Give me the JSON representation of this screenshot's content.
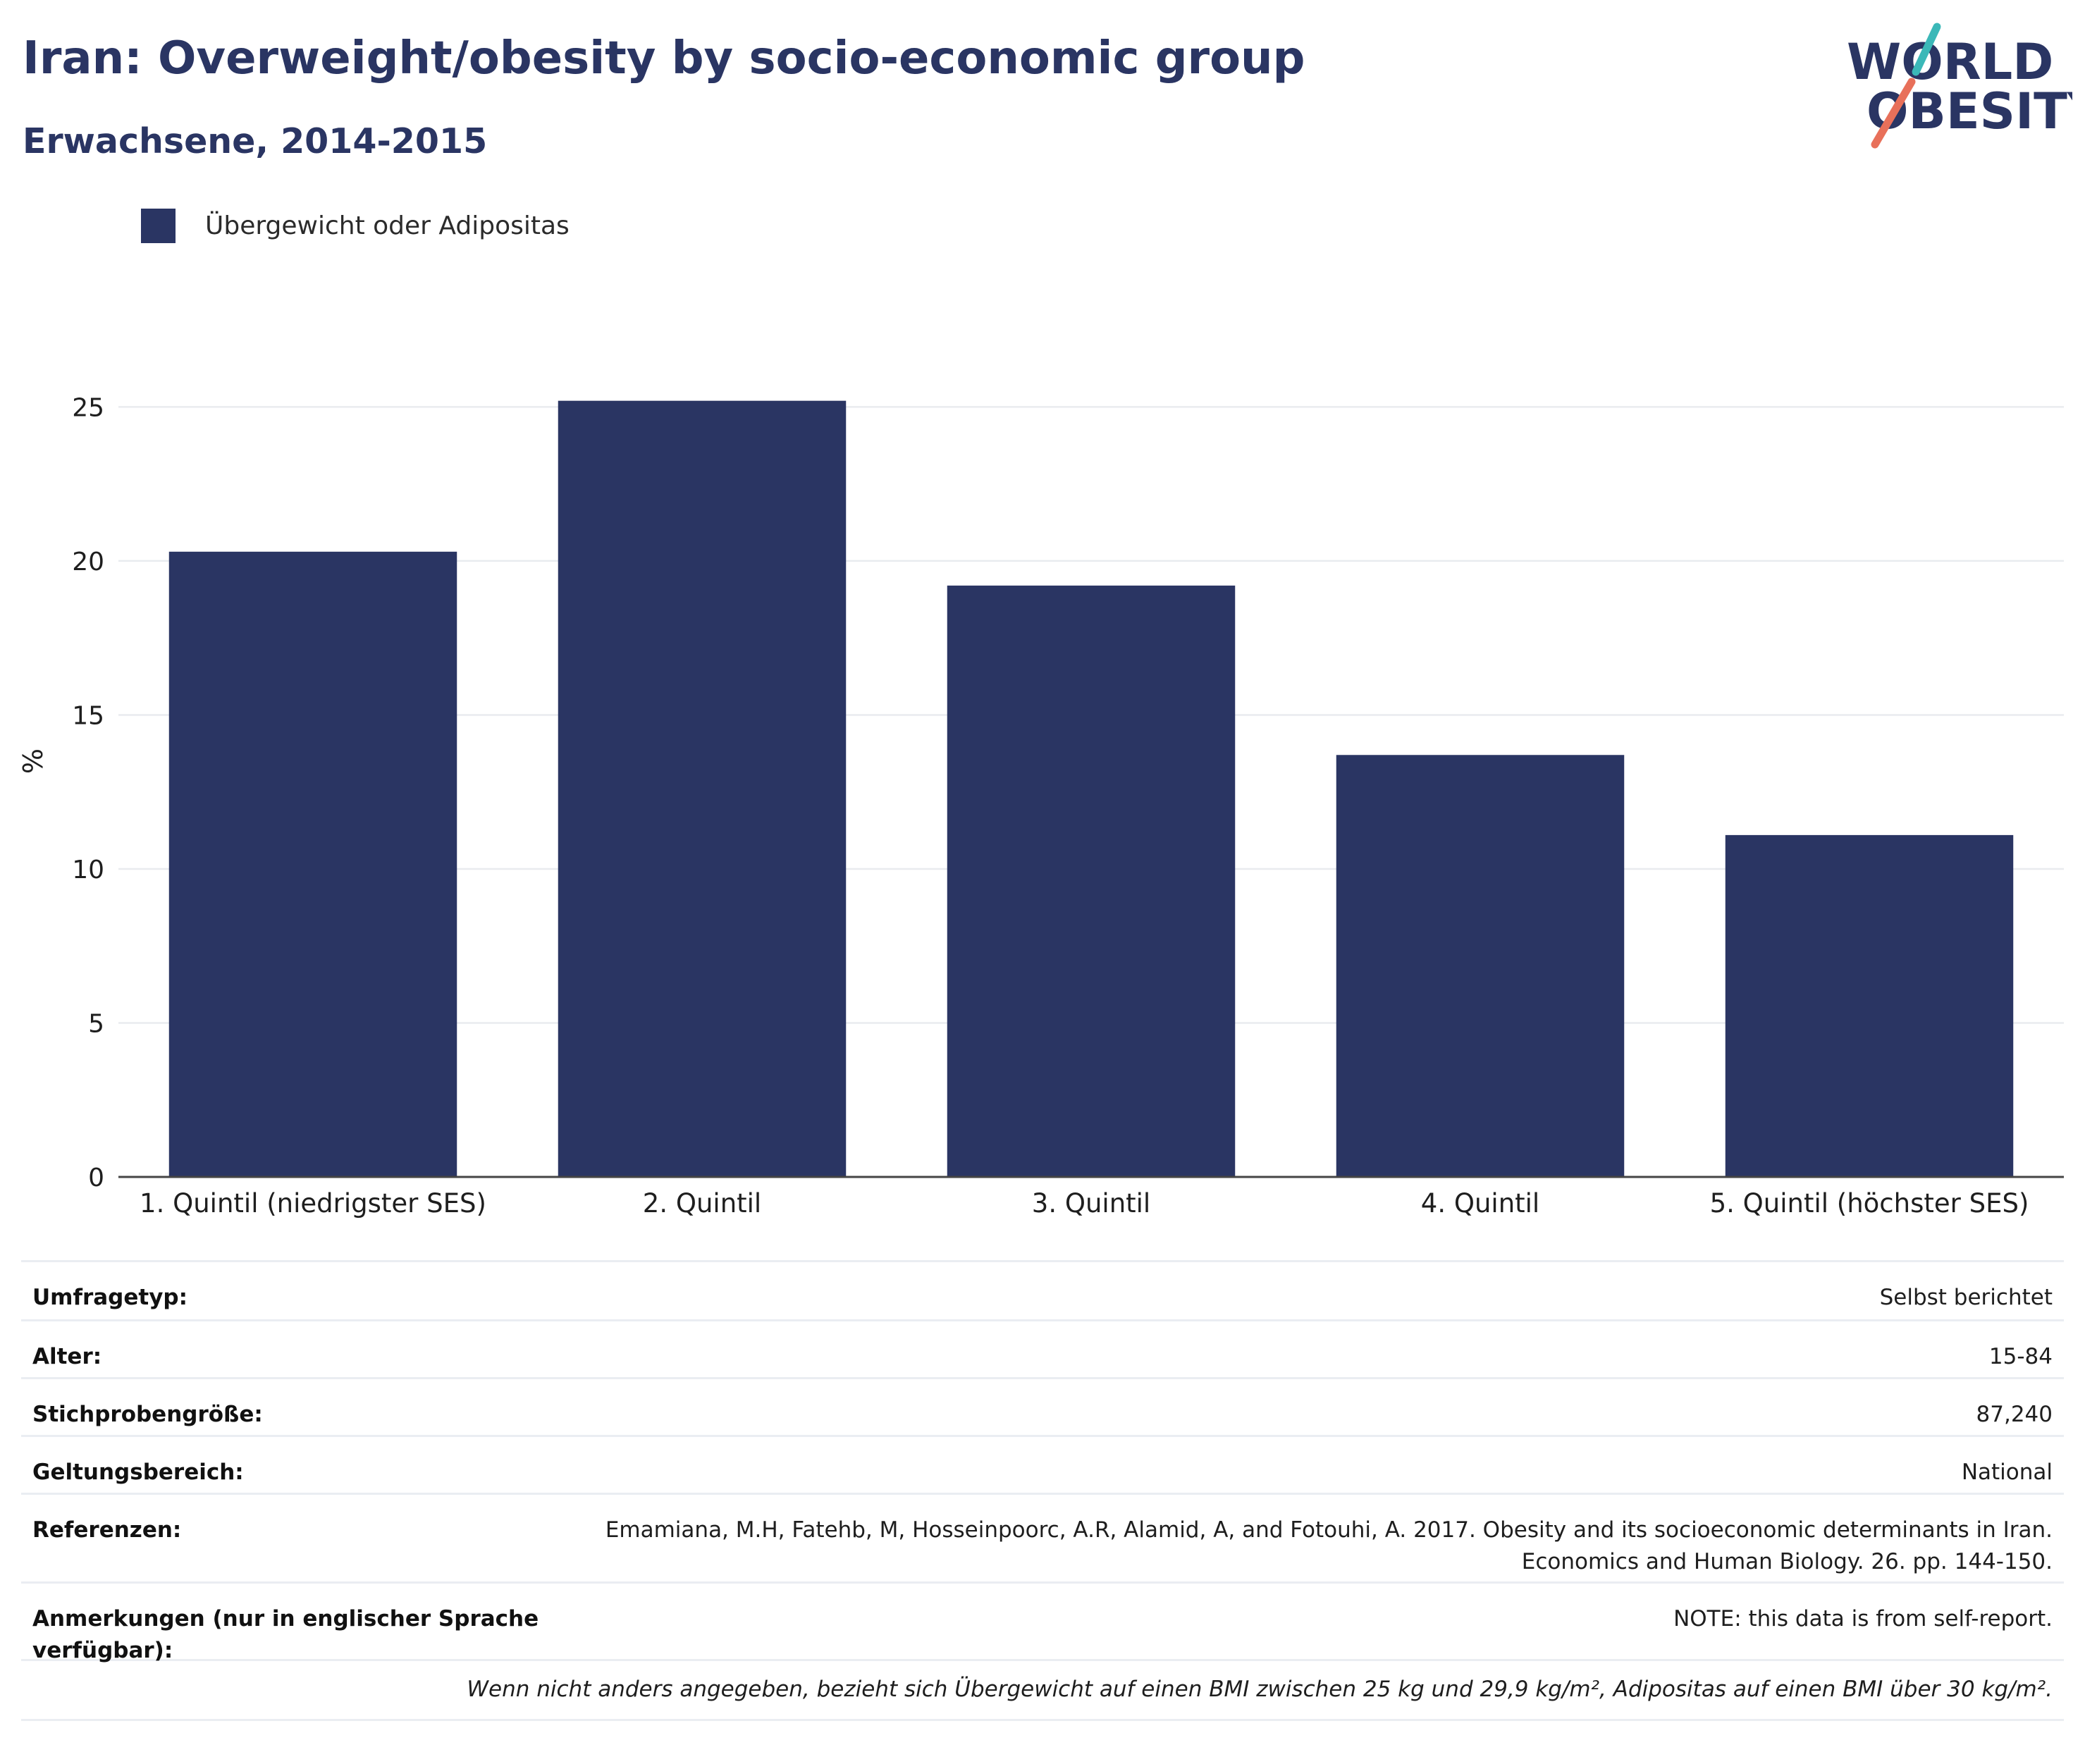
{
  "header": {
    "title": "Iran: Overweight/obesity by socio-economic group",
    "subtitle": "Erwachsene, 2014-2015"
  },
  "logo": {
    "line1": "WORLD",
    "line2": "OBESITY"
  },
  "colors": {
    "bar": "#2a3563",
    "title": "#2a3563",
    "logo_teal": "#3bb8b8",
    "logo_coral": "#e8705a",
    "grid": "#e9ebef"
  },
  "chart_data": {
    "type": "bar",
    "categories": [
      "1. Quintil (niedrigster SES)",
      "2. Quintil",
      "3. Quintil",
      "4. Quintil",
      "5. Quintil (höchster SES)"
    ],
    "series": [
      {
        "name": "Übergewicht oder Adipositas",
        "values": [
          20.3,
          25.2,
          19.2,
          13.7,
          11.1
        ]
      }
    ],
    "ylabel": "%",
    "ylim": [
      0,
      27
    ],
    "yticks": [
      0,
      5,
      10,
      15,
      20,
      25
    ],
    "grid": true,
    "legend_position": "top-left"
  },
  "details": {
    "rows": [
      {
        "key": "Umfragetyp:",
        "value": "Selbst berichtet"
      },
      {
        "key": "Alter:",
        "value": "15-84"
      },
      {
        "key": "Stichprobengröße:",
        "value": "87,240"
      },
      {
        "key": "Geltungsbereich:",
        "value": "National"
      },
      {
        "key": "Referenzen:",
        "value": "Emamiana, M.H, Fatehb, M, Hosseinpoorc, A.R, Alamid, A, and Fotouhi, A. 2017. Obesity and its socioeconomic determinants in Iran.\nEconomics and Human Biology. 26. pp. 144-150."
      },
      {
        "key": "Anmerkungen (nur in englischer Sprache verfügbar):",
        "value": "NOTE: this data is from self-report."
      }
    ],
    "footnote": "Wenn nicht anders angegeben, bezieht sich Übergewicht auf einen BMI zwischen 25 kg und 29,9 kg/m², Adipositas auf einen BMI über 30 kg/m²."
  }
}
